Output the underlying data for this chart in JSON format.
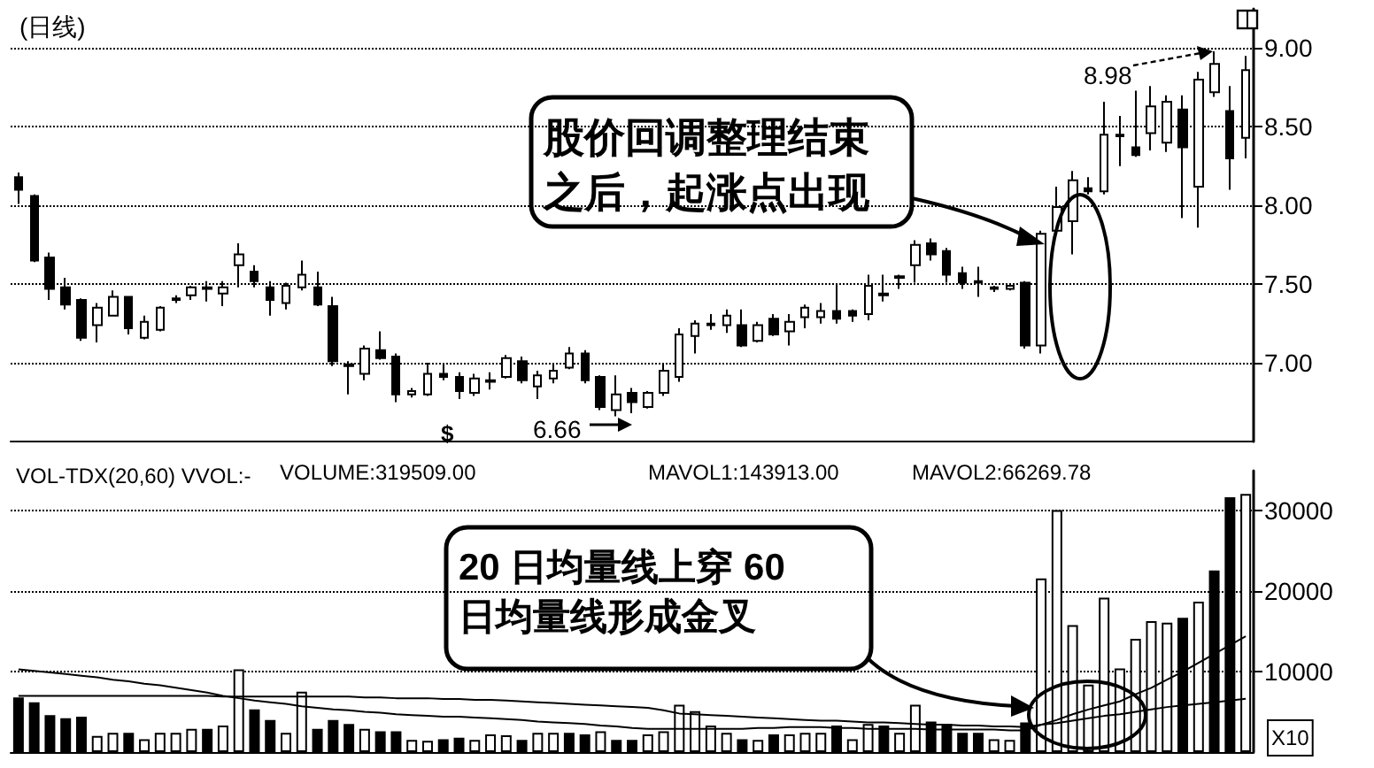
{
  "chart_data": [
    {
      "type": "candlestick",
      "title": "(日线)",
      "categories": [
        null,
        null,
        null,
        null,
        null,
        null,
        null,
        null,
        null,
        null,
        null,
        null,
        null,
        null,
        null,
        null,
        null,
        null,
        null,
        null,
        null,
        null,
        null,
        null,
        null,
        null,
        null,
        null,
        null,
        null,
        null,
        null,
        null,
        null,
        null,
        null,
        null,
        null,
        null,
        null,
        null,
        null,
        null,
        null,
        null,
        null,
        null,
        null,
        null,
        null,
        null,
        null,
        null,
        null,
        null,
        null,
        null,
        null,
        null,
        null,
        null,
        null,
        null,
        null,
        null,
        null,
        null,
        null,
        null,
        null,
        null,
        null,
        null,
        null,
        null,
        null,
        null,
        null,
        null
      ],
      "ohlc": [
        [
          8.18,
          8.21,
          8.01,
          8.1
        ],
        [
          8.06,
          8.07,
          7.64,
          7.65
        ],
        [
          7.67,
          7.7,
          7.4,
          7.47
        ],
        [
          7.48,
          7.54,
          7.34,
          7.37
        ],
        [
          7.4,
          7.41,
          7.14,
          7.16
        ],
        [
          7.24,
          7.38,
          7.13,
          7.35
        ],
        [
          7.3,
          7.46,
          7.3,
          7.42
        ],
        [
          7.42,
          7.42,
          7.18,
          7.22
        ],
        [
          7.16,
          7.3,
          7.15,
          7.26
        ],
        [
          7.21,
          7.36,
          7.2,
          7.35
        ],
        [
          7.4,
          7.43,
          7.38,
          7.41
        ],
        [
          7.43,
          7.49,
          7.4,
          7.48
        ],
        [
          7.47,
          7.52,
          7.39,
          7.48
        ],
        [
          7.44,
          7.52,
          7.36,
          7.48
        ],
        [
          7.62,
          7.76,
          7.48,
          7.69
        ],
        [
          7.58,
          7.62,
          7.48,
          7.52
        ],
        [
          7.48,
          7.52,
          7.3,
          7.4
        ],
        [
          7.38,
          7.51,
          7.34,
          7.49
        ],
        [
          7.48,
          7.65,
          7.46,
          7.56
        ],
        [
          7.48,
          7.58,
          7.36,
          7.37
        ],
        [
          7.36,
          7.42,
          6.98,
          7.01
        ],
        [
          6.99,
          7.01,
          6.8,
          6.98
        ],
        [
          6.93,
          7.11,
          6.89,
          7.09
        ],
        [
          7.08,
          7.2,
          7.02,
          7.03
        ],
        [
          7.04,
          7.06,
          6.75,
          6.8
        ],
        [
          6.8,
          6.84,
          6.78,
          6.82
        ],
        [
          6.8,
          7.0,
          6.79,
          6.93
        ],
        [
          6.93,
          6.99,
          6.89,
          6.91
        ],
        [
          6.91,
          6.94,
          6.77,
          6.82
        ],
        [
          6.81,
          6.93,
          6.79,
          6.9
        ],
        [
          6.88,
          6.94,
          6.83,
          6.89
        ],
        [
          6.91,
          7.05,
          6.9,
          7.03
        ],
        [
          7.01,
          7.04,
          6.87,
          6.89
        ],
        [
          6.85,
          6.95,
          6.77,
          6.92
        ],
        [
          6.9,
          7.0,
          6.87,
          6.95
        ],
        [
          6.97,
          7.1,
          6.96,
          7.06
        ],
        [
          7.06,
          7.08,
          6.87,
          6.89
        ],
        [
          6.91,
          6.92,
          6.7,
          6.72
        ],
        [
          6.7,
          6.92,
          6.66,
          6.8
        ],
        [
          6.81,
          6.84,
          6.68,
          6.75
        ],
        [
          6.72,
          6.82,
          6.71,
          6.81
        ],
        [
          6.81,
          6.99,
          6.79,
          6.95
        ],
        [
          6.91,
          7.22,
          6.88,
          7.18
        ],
        [
          7.17,
          7.27,
          7.06,
          7.25
        ],
        [
          7.24,
          7.31,
          7.21,
          7.25
        ],
        [
          7.24,
          7.34,
          7.19,
          7.3
        ],
        [
          7.24,
          7.34,
          7.1,
          7.11
        ],
        [
          7.14,
          7.26,
          7.13,
          7.24
        ],
        [
          7.28,
          7.31,
          7.17,
          7.18
        ],
        [
          7.2,
          7.31,
          7.11,
          7.26
        ],
        [
          7.29,
          7.37,
          7.22,
          7.35
        ],
        [
          7.29,
          7.38,
          7.25,
          7.33
        ],
        [
          7.33,
          7.5,
          7.25,
          7.28
        ],
        [
          7.33,
          7.34,
          7.26,
          7.3
        ],
        [
          7.31,
          7.56,
          7.27,
          7.49
        ],
        [
          7.43,
          7.56,
          7.39,
          7.44
        ],
        [
          7.55,
          7.56,
          7.47,
          7.54
        ],
        [
          7.62,
          7.78,
          7.51,
          7.75
        ],
        [
          7.76,
          7.79,
          7.65,
          7.69
        ],
        [
          7.71,
          7.73,
          7.51,
          7.56
        ],
        [
          7.57,
          7.61,
          7.47,
          7.51
        ],
        [
          7.52,
          7.61,
          7.42,
          7.51
        ],
        [
          7.48,
          7.49,
          7.45,
          7.47
        ],
        [
          7.47,
          7.5,
          7.46,
          7.49
        ],
        [
          7.51,
          7.52,
          7.09,
          7.11
        ],
        [
          7.11,
          7.84,
          7.06,
          7.82
        ],
        [
          7.84,
          8.12,
          7.82,
          7.99
        ],
        [
          7.9,
          8.22,
          7.69,
          8.16
        ],
        [
          8.11,
          8.18,
          8.07,
          8.09
        ],
        [
          8.09,
          8.66,
          8.07,
          8.45
        ],
        [
          8.44,
          8.57,
          8.25,
          8.45
        ],
        [
          8.37,
          8.73,
          8.31,
          8.32
        ],
        [
          8.46,
          8.76,
          8.35,
          8.63
        ],
        [
          8.4,
          8.7,
          8.34,
          8.66
        ],
        [
          8.61,
          8.7,
          7.92,
          8.37
        ],
        [
          8.12,
          8.85,
          7.86,
          8.8
        ],
        [
          8.72,
          8.98,
          8.69,
          8.9
        ],
        [
          8.6,
          8.76,
          8.1,
          8.3
        ],
        [
          8.43,
          8.95,
          8.3,
          8.86
        ]
      ],
      "ylim": [
        6.5,
        9.25
      ],
      "yticks": [
        {
          "value": 7,
          "label": "7.00"
        },
        {
          "value": 7.5,
          "label": "7.50"
        },
        {
          "value": 8,
          "label": "8.00"
        },
        {
          "value": 8.5,
          "label": "8.50"
        },
        {
          "value": 9,
          "label": "9.00"
        }
      ],
      "grid": "y",
      "tick_labels": "y",
      "annotations": [
        "股价回调整理结束之后，起涨点出现",
        "6.66",
        "8.98",
        "$"
      ]
    },
    {
      "type": "bar",
      "title": "VOL-TDX(20,60) VVOL:-",
      "categories": [
        null,
        null,
        null,
        null,
        null,
        null,
        null,
        null,
        null,
        null,
        null,
        null,
        null,
        null,
        null,
        null,
        null,
        null,
        null,
        null,
        null,
        null,
        null,
        null,
        null,
        null,
        null,
        null,
        null,
        null,
        null,
        null,
        null,
        null,
        null,
        null,
        null,
        null,
        null,
        null,
        null,
        null,
        null,
        null,
        null,
        null,
        null,
        null,
        null,
        null,
        null,
        null,
        null,
        null,
        null,
        null,
        null,
        null,
        null,
        null,
        null,
        null,
        null,
        null,
        null,
        null,
        null,
        null,
        null,
        null,
        null,
        null,
        null,
        null,
        null,
        null,
        null,
        null,
        null
      ],
      "series": [
        {
          "colors": [
            "#000000",
            "#000000",
            "#000000",
            "#000000",
            "#000000",
            "#ffffff",
            "#ffffff",
            "#000000",
            "#ffffff",
            "#ffffff",
            "#ffffff",
            "#ffffff",
            "#000000",
            "#ffffff",
            "#ffffff",
            "#000000",
            "#000000",
            "#ffffff",
            "#ffffff",
            "#000000",
            "#000000",
            "#000000",
            "#ffffff",
            "#000000",
            "#000000",
            "#ffffff",
            "#ffffff",
            "#000000",
            "#000000",
            "#ffffff",
            "#ffffff",
            "#ffffff",
            "#000000",
            "#ffffff",
            "#ffffff",
            "#000000",
            "#000000",
            "#ffffff",
            "#000000",
            "#000000",
            "#ffffff",
            "#ffffff",
            "#ffffff",
            "#ffffff",
            "#ffffff",
            "#ffffff",
            "#000000",
            "#ffffff",
            "#000000",
            "#ffffff",
            "#ffffff",
            "#ffffff",
            "#000000",
            "#ffffff",
            "#ffffff",
            "#000000",
            "#ffffff",
            "#ffffff",
            "#000000",
            "#000000",
            "#000000",
            "#000000",
            "#ffffff",
            "#ffffff",
            "#000000",
            "#ffffff",
            "#ffffff",
            "#ffffff",
            "#ffffff",
            "#ffffff",
            "#ffffff",
            "#ffffff",
            "#ffffff",
            "#ffffff",
            "#000000",
            "#ffffff",
            "#000000",
            "#000000",
            "#ffffff"
          ],
          "values": [
            6800,
            6200,
            4600,
            4200,
            4400,
            2000,
            2400,
            2400,
            1600,
            2400,
            2400,
            2900,
            2900,
            3300,
            10300,
            5300,
            4000,
            2400,
            7500,
            2900,
            4000,
            3500,
            2900,
            2600,
            2600,
            1500,
            1400,
            1600,
            1800,
            1500,
            2200,
            2100,
            1500,
            2400,
            2400,
            2400,
            2200,
            2600,
            1500,
            1500,
            2200,
            2600,
            5900,
            5100,
            3300,
            2400,
            1600,
            1500,
            2200,
            2200,
            2400,
            2400,
            3300,
            1600,
            3500,
            3300,
            2400,
            5900,
            3800,
            3500,
            2400,
            2400,
            1600,
            1500,
            3700,
            21600,
            30100,
            15800,
            8400,
            19200,
            10400,
            14100,
            16300,
            16100,
            16700,
            18700,
            22600,
            31700,
            32100
          ]
        },
        {
          "type": "line",
          "color": "#000000",
          "values": [
            10300,
            10100,
            9900,
            9700,
            9500,
            9300,
            9000,
            8800,
            8500,
            8300,
            8000,
            7700,
            7400,
            7000,
            6700,
            6400,
            6200,
            6000,
            5700,
            5500,
            5300,
            5200,
            5000,
            4900,
            4700,
            4600,
            4500,
            4400,
            4400,
            4300,
            4200,
            4100,
            4000,
            3800,
            3700,
            3600,
            3500,
            3300,
            3200,
            3000,
            2900,
            2900,
            2900,
            2900,
            2900,
            2900,
            2900,
            3000,
            3000,
            3100,
            3100,
            3100,
            3000,
            3000,
            2900,
            2900,
            2900,
            2900,
            2800,
            2800,
            2800,
            2800,
            2800,
            2700,
            2700,
            3400,
            4000,
            4700,
            5300,
            5800,
            6300,
            7200,
            8000,
            9000,
            10000,
            11100,
            12200,
            13300,
            14391
          ]
        },
        {
          "type": "line",
          "color": "#000000",
          "values": [
            7000,
            7000,
            7000,
            7000,
            7000,
            7000,
            7000,
            7000,
            7000,
            7000,
            7000,
            7000,
            7000,
            6900,
            6900,
            6900,
            6900,
            6900,
            6900,
            6900,
            6900,
            6900,
            6800,
            6800,
            6700,
            6700,
            6700,
            6600,
            6600,
            6500,
            6500,
            6400,
            6300,
            6200,
            6100,
            6000,
            5900,
            5800,
            5700,
            5600,
            5500,
            5200,
            4800,
            4700,
            4600,
            4500,
            4400,
            4300,
            4200,
            4100,
            4000,
            3900,
            3900,
            3800,
            3700,
            3700,
            3600,
            3500,
            3400,
            3400,
            3300,
            3300,
            3200,
            3200,
            3100,
            3400,
            3600,
            3900,
            4200,
            4500,
            4700,
            5000,
            5300,
            5600,
            5800,
            6000,
            6200,
            6400,
            6627
          ]
        }
      ],
      "ylim": [
        0,
        35000
      ],
      "yticks": [
        10000,
        20000,
        30000
      ],
      "grid": "y",
      "tick_labels": "y",
      "annotations": [
        "VOLUME:319509.00",
        "MAVOL1:143913.00",
        "MAVOL2:66269.78",
        "X10",
        "20 日均量线上穿 60 日均量线形成金叉"
      ]
    }
  ]
}
